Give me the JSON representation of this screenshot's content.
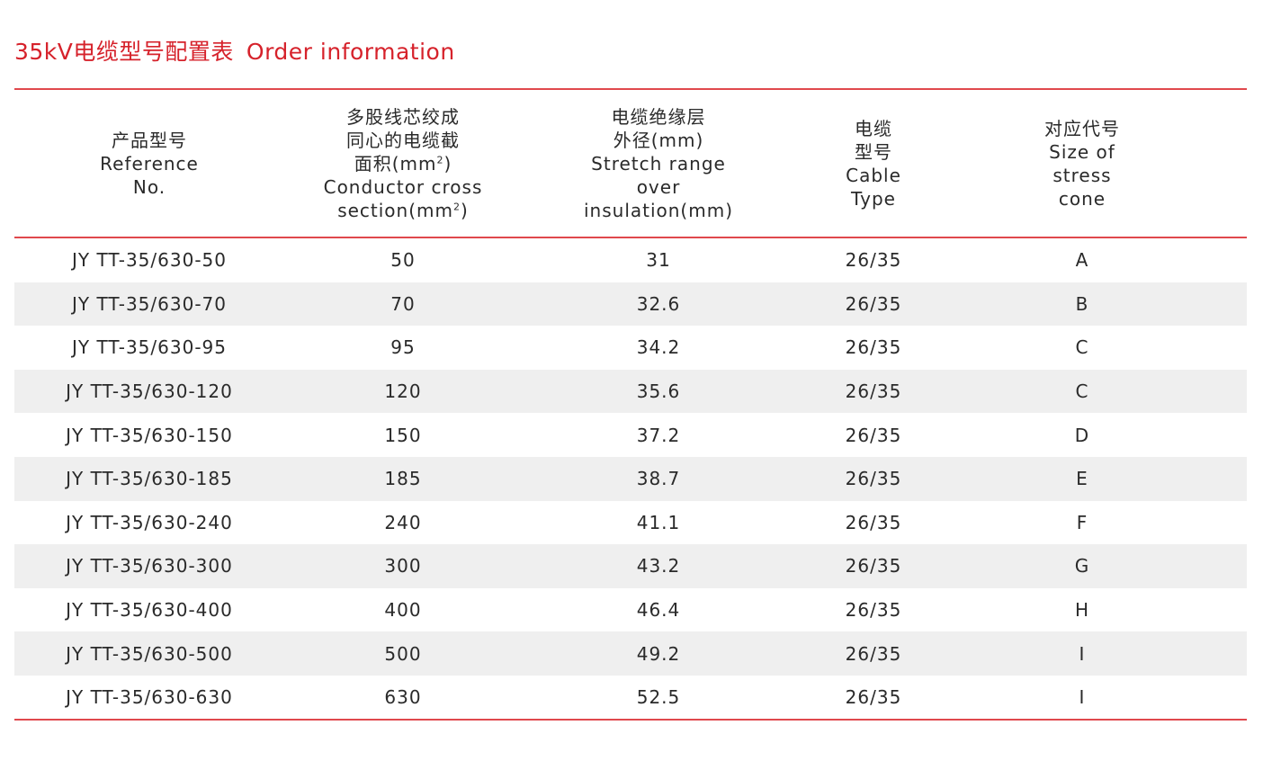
{
  "title": {
    "cn": "35kV电缆型号配置表",
    "en": "Order information"
  },
  "header": {
    "col1": {
      "lines": [
        "产品型号",
        "Reference",
        "No."
      ]
    },
    "col2": {
      "lines": [
        "多股线芯绞成",
        "同心的电缆截",
        "面积(mm",
        "Conductor cross",
        "section(mm"
      ],
      "sup": "2",
      "sup_close": ")"
    },
    "col3": {
      "lines": [
        "电缆绝缘层",
        "外径(mm)",
        "Stretch range",
        "over",
        "insulation(mm)"
      ]
    },
    "col4": {
      "lines": [
        "电缆",
        "型号",
        "Cable",
        "Type"
      ]
    },
    "col5": {
      "lines": [
        "对应代号",
        "Size of",
        "stress",
        "cone"
      ]
    }
  },
  "rows": [
    {
      "ref": "JY TT-35/630-50",
      "section": "50",
      "diameter": "31",
      "type": "26/35",
      "cone": "A"
    },
    {
      "ref": "JY TT-35/630-70",
      "section": "70",
      "diameter": "32.6",
      "type": "26/35",
      "cone": "B"
    },
    {
      "ref": "JY TT-35/630-95",
      "section": "95",
      "diameter": "34.2",
      "type": "26/35",
      "cone": "C"
    },
    {
      "ref": "JY TT-35/630-120",
      "section": "120",
      "diameter": "35.6",
      "type": "26/35",
      "cone": "C"
    },
    {
      "ref": "JY TT-35/630-150",
      "section": "150",
      "diameter": "37.2",
      "type": "26/35",
      "cone": "D"
    },
    {
      "ref": "JY TT-35/630-185",
      "section": "185",
      "diameter": "38.7",
      "type": "26/35",
      "cone": "E"
    },
    {
      "ref": "JY TT-35/630-240",
      "section": "240",
      "diameter": "41.1",
      "type": "26/35",
      "cone": "F"
    },
    {
      "ref": "JY TT-35/630-300",
      "section": "300",
      "diameter": "43.2",
      "type": "26/35",
      "cone": "G"
    },
    {
      "ref": "JY TT-35/630-400",
      "section": "400",
      "diameter": "46.4",
      "type": "26/35",
      "cone": "H"
    },
    {
      "ref": "JY TT-35/630-500",
      "section": "500",
      "diameter": "49.2",
      "type": "26/35",
      "cone": "I"
    },
    {
      "ref": "JY TT-35/630-630",
      "section": "630",
      "diameter": "52.5",
      "type": "26/35",
      "cone": "I"
    }
  ],
  "colors": {
    "accent": "#d6222b",
    "rule": "#e0484d",
    "row_shade": "#efefef",
    "text": "#2a2a2a"
  }
}
